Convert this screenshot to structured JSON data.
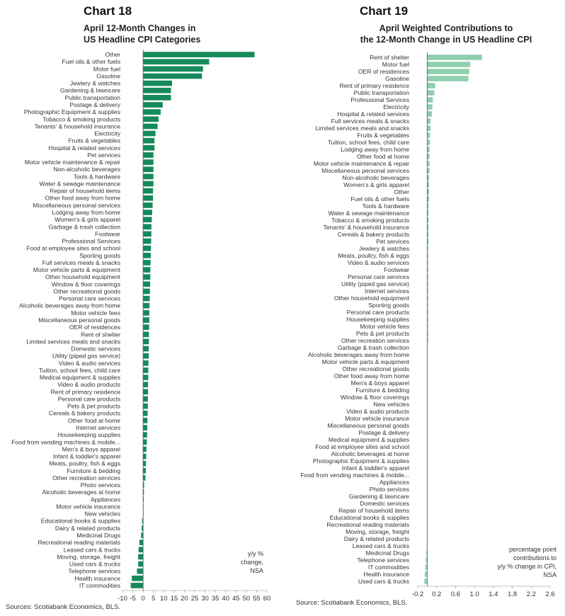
{
  "chart_data": [
    {
      "type": "bar",
      "orientation": "horizontal",
      "chart_number": "Chart 18",
      "title_lines": [
        "April 12-Month Changes in",
        "US Headline CPI Categories"
      ],
      "note_lines": [
        "y/y %",
        "change,",
        "NSA"
      ],
      "source": "Sources: Scotiabank Economics, BLS.",
      "xlim": [
        -10,
        60
      ],
      "xticks": [
        -10,
        -5,
        0,
        5,
        10,
        15,
        20,
        25,
        30,
        35,
        40,
        45,
        50,
        55,
        60
      ],
      "tick_labels": [
        "-10",
        "-5",
        "0",
        "5",
        "10",
        "15",
        "20",
        "25",
        "30",
        "35",
        "40",
        "45",
        "50",
        "55",
        "60"
      ],
      "bar_color": "#158a5c",
      "categories": [
        "Other",
        "Fuel oils & other fuels",
        "Motor fuel",
        "Gasoline",
        "Jewlery & watches",
        "Gardening & lawncare",
        "Public transportation",
        "Postage & delivery",
        "Photographic Equipment & supplies",
        "Tobacco & smoking products",
        "Tenants' & household insurance",
        "Electricity",
        "Fruits & vegetables",
        "Hospital & related services",
        "Pet services",
        "Motor vehicle maintenance & repair",
        "Non-alcoholic beverages",
        "Tools & hardware",
        "Water & sewage maintenance",
        "Repair of household items",
        "Other food away from home",
        "Miscellaneous personal services",
        "Lodging away from home",
        "Women's & girls apparel",
        "Garbage & trash collection",
        "Footwear",
        "Professional Services",
        "Food at employee sites and school",
        "Sporting goods",
        "Full services meals & snacks",
        "Motor vehicle parts & equipment",
        "Other household equipment",
        "Window & floor coverings",
        "Other recreational goods",
        "Personal care services",
        "Alcoholic beverages away from home",
        "Motor vehicle fees",
        "Miscellaneous personal goods",
        "OER of residences",
        "Rent of shelter",
        "Limited services meals and snacks",
        "Domestic services",
        "Utility (piped gas service)",
        "Video & audio services",
        "Tuition, school fees, child care",
        "Medical equipment & supplies",
        "Video & audio products",
        "Rent of  primary residence",
        "Personal care products",
        "Pets & pet products",
        "Cereals & bakery products",
        "Other food at home",
        "Internet services",
        "Housekeeping supplies",
        "Food from vending machines & mobile...",
        "Men's & boys apparel",
        "Infant & toddler's apparel",
        "Meats, poultry, fish & eggs",
        "Furniture & bedding",
        "Other recreation services",
        "Photo services",
        "Alcoholic beverages at home",
        "Appliances",
        "Motor vehicle insurance",
        "New vehicles",
        "Educational books & supplies",
        "Dairy & related products",
        "Medicinal Drugs",
        "Recreational reading materials",
        "Leased cars & trucks",
        "Moving, storage, freight",
        "Used cars & trucks",
        "Telephone services",
        "Health insurance",
        "IT commodities"
      ],
      "values": [
        54,
        32,
        29,
        28.5,
        14,
        13.5,
        13.5,
        9.5,
        8.5,
        7.5,
        7,
        6,
        5.5,
        5.5,
        5,
        5,
        5,
        5,
        5,
        4.8,
        4.8,
        4.6,
        4.4,
        4.2,
        4,
        4,
        3.9,
        3.8,
        3.7,
        3.6,
        3.5,
        3.5,
        3.4,
        3.3,
        3.2,
        3.1,
        3.0,
        3.0,
        2.9,
        2.8,
        2.8,
        2.7,
        2.7,
        2.6,
        2.5,
        2.5,
        2.4,
        2.4,
        2.3,
        2.3,
        2.2,
        2.1,
        2.0,
        1.9,
        1.8,
        1.6,
        1.5,
        1.4,
        1.3,
        1.1,
        0.5,
        0.4,
        0.3,
        0.2,
        0.1,
        -0.5,
        -0.7,
        -1.0,
        -1.8,
        -2.2,
        -2.4,
        -2.4,
        -3.0,
        -5.5,
        -6.0
      ]
    },
    {
      "type": "bar",
      "orientation": "horizontal",
      "chart_number": "Chart 19",
      "title_lines": [
        "April Weighted Contributions to",
        "the 12-Month Change in US Headline CPI"
      ],
      "note_lines": [
        "percentage point",
        "contributions to",
        "y/y % change in CPI,",
        "NSA"
      ],
      "source": "Source: Scotiabank Economics, BLS.",
      "xlim": [
        -0.2,
        2.6
      ],
      "xticks": [
        -0.2,
        0.2,
        0.6,
        1.0,
        1.4,
        1.8,
        2.2,
        2.6
      ],
      "tick_labels": [
        "-0.2",
        "0.2",
        "0.6",
        "1.0",
        "1.4",
        "1.8",
        "2.2",
        "2.6"
      ],
      "bar_color": "#8fcfae",
      "categories": [
        "Rent of shelter",
        "Motor fuel",
        "OER of residences",
        "Gasoline",
        "Rent of  primary residence",
        "Public transportation",
        "Professional Services",
        "Electricity",
        "Hospital & related services",
        "Full services meals & snacks",
        "Limited services meals and snacks",
        "Fruits & vegetables",
        "Tuition, school fees, child care",
        "Lodging away from home",
        "Other food at home",
        "Motor vehicle maintenance & repair",
        "Miscellaneous personal services",
        "Non-alcoholic beverages",
        "Women's & girls apparel",
        "Other",
        "Fuel oils & other fuels",
        "Tools & hardware",
        "Water & sewage maintenance",
        "Tobacco & smoking products",
        "Tenants' & household insurance",
        "Cereals & bakery products",
        "Pet services",
        "Jewlery & watches",
        "Meats, poultry, fish & eggs",
        "Video & audio services",
        "Footwear",
        "Personal care services",
        "Utility (piped gas service)",
        "Internet services",
        "Other household equipment",
        "Sporting goods",
        "Personal care products",
        "Housekeeping supplies",
        "Motor vehicle fees",
        "Pets & pet products",
        "Other recreation services",
        "Garbage & trash collection",
        "Alcoholic beverages away from home",
        "Motor vehicle parts & equipment",
        "Other recreational goods",
        "Other food away from home",
        "Men's & boys apparel",
        "Furniture & bedding",
        "Window & floor coverings",
        "New vehicles",
        "Video & audio products",
        "Motor vehicle insurance",
        "Miscellaneous personal goods",
        "Postage & delivery",
        "Medical equipment & supplies",
        "Food at employee sites and school",
        "Alcoholic beverages at home",
        "Photographic Equipment & supplies",
        "Infant & toddler's apparel",
        "Food from vending machines & mobile...",
        "Appliances",
        "Photo services",
        "Gardening & lawncare",
        "Domestic services",
        "Repair of household items",
        "Educational books & supplies",
        "Recreational reading materials",
        "Moving, storage, freight",
        "Dairy & related products",
        "Leased cars & trucks",
        "Medicinal Drugs",
        "Telephone services",
        "IT commodities",
        "Health insurance",
        "Used cars & trucks"
      ],
      "values": [
        1.16,
        0.91,
        0.89,
        0.87,
        0.17,
        0.15,
        0.12,
        0.11,
        0.1,
        0.07,
        0.07,
        0.06,
        0.06,
        0.05,
        0.05,
        0.05,
        0.05,
        0.04,
        0.04,
        0.04,
        0.04,
        0.03,
        0.03,
        0.03,
        0.03,
        0.03,
        0.03,
        0.02,
        0.02,
        0.02,
        0.02,
        0.02,
        0.02,
        0.02,
        0.02,
        0.02,
        0.02,
        0.02,
        0.02,
        0.02,
        0.02,
        0.01,
        0.01,
        0.01,
        0.01,
        0.01,
        0.01,
        0.01,
        0.01,
        0.01,
        0.01,
        0.01,
        0.01,
        0.01,
        0.01,
        0.01,
        0.01,
        0.005,
        0.005,
        0.005,
        0.004,
        0.003,
        0.003,
        0.002,
        0.002,
        0.0,
        -0.002,
        -0.004,
        -0.008,
        -0.01,
        -0.02,
        -0.03,
        -0.04,
        -0.05,
        -0.06
      ]
    }
  ]
}
